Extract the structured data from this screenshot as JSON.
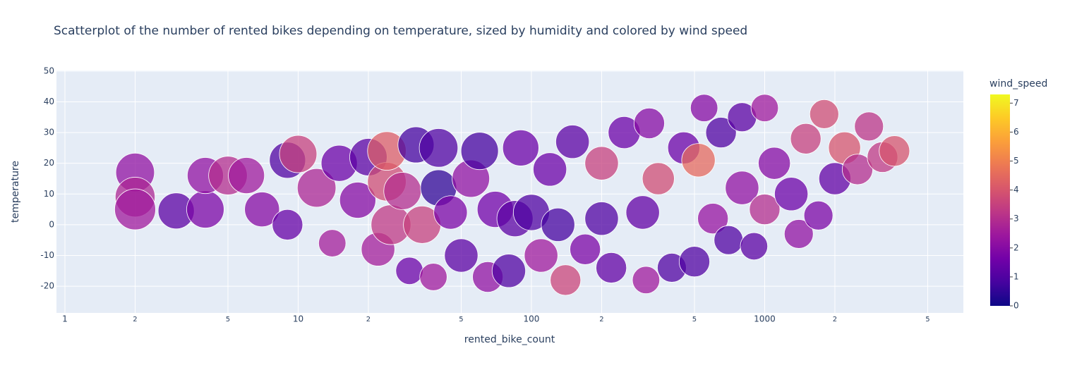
{
  "chart_data": {
    "type": "scatter",
    "title": "Scatterplot of the number of rented bikes depending on temperature, sized by humidity and colored by wind speed",
    "x_label": "rented_bike_count",
    "y_label": "temperature",
    "colorbar_title": "wind_speed",
    "x": [
      2,
      2,
      2,
      3,
      4,
      4,
      5,
      6,
      7,
      9,
      9,
      10,
      12,
      14,
      15,
      18,
      20,
      22,
      24,
      24,
      25,
      28,
      30,
      32,
      34,
      38,
      40,
      40,
      45,
      50,
      55,
      60,
      65,
      70,
      80,
      85,
      90,
      100,
      110,
      120,
      130,
      140,
      150,
      170,
      200,
      200,
      220,
      250,
      300,
      310,
      320,
      350,
      400,
      450,
      500,
      520,
      550,
      600,
      650,
      700,
      800,
      800,
      900,
      1000,
      1000,
      1100,
      1300,
      1400,
      1500,
      1700,
      1800,
      2000,
      2200,
      2500,
      2800,
      3200,
      3600
    ],
    "y": [
      17,
      9,
      5,
      4.5,
      5,
      16,
      16,
      16,
      5,
      21,
      0,
      23,
      12,
      -6,
      20,
      8,
      22,
      -8,
      14,
      24,
      0,
      11,
      -15,
      26,
      0,
      -17,
      12,
      25,
      4,
      -10,
      15,
      24,
      -17,
      5,
      -15,
      2,
      25,
      4,
      -10,
      18,
      0,
      -18,
      27,
      -8,
      2,
      20,
      -14,
      30,
      4,
      -18,
      33,
      15,
      -14,
      25,
      -12,
      21,
      38,
      2,
      30,
      -5,
      12,
      35,
      -7,
      5,
      38,
      20,
      10,
      -3,
      28,
      3,
      36,
      15,
      25,
      18,
      32,
      22,
      24
    ],
    "size": [
      80,
      85,
      90,
      70,
      75,
      70,
      80,
      70,
      65,
      70,
      50,
      75,
      80,
      40,
      70,
      70,
      75,
      60,
      80,
      80,
      85,
      75,
      40,
      70,
      75,
      40,
      70,
      80,
      60,
      60,
      75,
      75,
      50,
      70,
      60,
      70,
      70,
      70,
      60,
      60,
      60,
      50,
      60,
      50,
      60,
      60,
      50,
      55,
      60,
      40,
      50,
      55,
      45,
      55,
      50,
      60,
      40,
      50,
      50,
      45,
      60,
      45,
      40,
      50,
      40,
      55,
      60,
      45,
      50,
      45,
      45,
      55,
      55,
      50,
      45,
      50,
      50
    ],
    "color": [
      2.2,
      2.8,
      2.5,
      1.2,
      1.8,
      2.2,
      3.0,
      2.5,
      2.0,
      1.0,
      1.4,
      3.5,
      2.8,
      2.6,
      1.5,
      2.0,
      1.2,
      2.6,
      3.8,
      4.2,
      3.3,
      3.0,
      1.5,
      0.8,
      3.5,
      2.5,
      0.5,
      1.0,
      1.8,
      1.2,
      2.2,
      0.8,
      2.2,
      1.6,
      1.0,
      1.2,
      1.5,
      1.0,
      2.5,
      1.5,
      0.8,
      3.6,
      1.2,
      1.8,
      1.0,
      3.5,
      1.3,
      1.5,
      1.3,
      2.5,
      2.0,
      3.8,
      1.0,
      1.5,
      1.0,
      4.5,
      2.0,
      2.3,
      1.0,
      1.0,
      2.2,
      1.2,
      1.2,
      3.0,
      2.5,
      2.0,
      1.5,
      2.2,
      3.5,
      1.8,
      3.8,
      1.3,
      4.0,
      3.0,
      3.2,
      3.3,
      4.0
    ],
    "log_x": true,
    "grid": true,
    "xlim": [
      0.92,
      7110
    ],
    "ylim": [
      -28.7,
      50.2
    ],
    "xticks": [
      1,
      {
        "value": 2,
        "label": "2"
      },
      {
        "value": 5,
        "label": "5"
      },
      10,
      {
        "value": 20,
        "label": "2"
      },
      {
        "value": 50,
        "label": "5"
      },
      100,
      {
        "value": 200,
        "label": "2"
      },
      {
        "value": 500,
        "label": "5"
      },
      1000,
      {
        "value": 2000,
        "label": "2"
      },
      {
        "value": 5000,
        "label": "5"
      }
    ],
    "yticks": [
      -20,
      -10,
      0,
      10,
      20,
      30,
      40,
      50
    ],
    "colorscale": [
      "#0d0887",
      "#46039f",
      "#7201a8",
      "#9c179e",
      "#bd3786",
      "#d8576b",
      "#ed7953",
      "#fb9f3a",
      "#fdca26",
      "#f0f921"
    ],
    "clim": [
      0,
      7.3
    ],
    "cticks": [
      0,
      1,
      2,
      3,
      4,
      5,
      6,
      7
    ]
  }
}
